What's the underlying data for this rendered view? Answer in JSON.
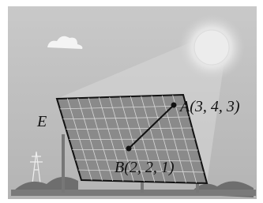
{
  "labels": {
    "point_e": "E",
    "point_a": "A(3, 4, 3)",
    "point_b": "B(2, 2, 1)"
  }
}
